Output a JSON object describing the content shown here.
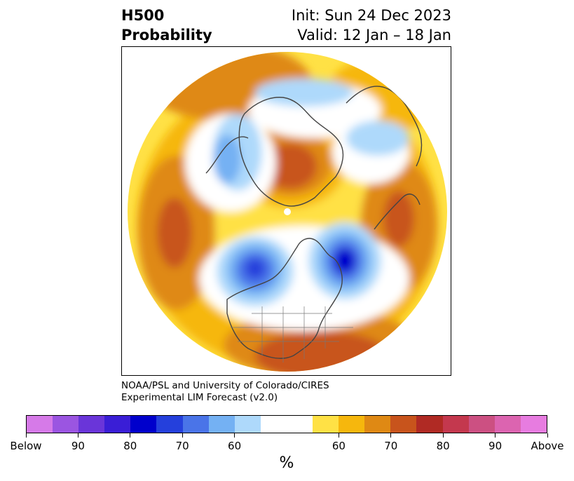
{
  "title": {
    "left_line1": "H500",
    "left_line2": "Probability",
    "right_line1": "Init: Sun 24 Dec 2023",
    "right_line2": "Valid: 12 Jan – 18 Jan"
  },
  "credit": {
    "line1": "NOAA/PSL and University of Colorado/CIRES",
    "line2": "Experimental LIM Forecast (v2.0)"
  },
  "colorbar": {
    "colors": [
      "#d67ae8",
      "#9b55e1",
      "#6a35d9",
      "#3a1ed6",
      "#0000cc",
      "#2540dc",
      "#4a74e8",
      "#74b1f3",
      "#aed9fb",
      "#ffffff",
      "#ffffff",
      "#ffe145",
      "#f6b70d",
      "#df8914",
      "#c8541c",
      "#b02a24",
      "#c4384e",
      "#cc5082",
      "#dc64b0",
      "#e77ce0"
    ],
    "labels": [
      "Below",
      "90",
      "80",
      "70",
      "60",
      "60",
      "70",
      "80",
      "90",
      "Above"
    ],
    "unit": "%"
  },
  "map": {
    "description_icon": "north-polar-stereographic-map",
    "features": [
      {
        "name": "north-america-below-center",
        "sign": "below",
        "peak_pct": 80
      },
      {
        "name": "north-atlantic-below-center",
        "sign": "below",
        "peak_pct": 85
      },
      {
        "name": "scandinavia-europe-below",
        "sign": "below",
        "peak_pct": 60
      },
      {
        "name": "siberia-below",
        "sign": "below",
        "peak_pct": 60
      },
      {
        "name": "arctic-above-center",
        "sign": "above",
        "peak_pct": 75
      },
      {
        "name": "north-pacific-above",
        "sign": "above",
        "peak_pct": 70
      },
      {
        "name": "eastern-asia-above",
        "sign": "above",
        "peak_pct": 70
      },
      {
        "name": "southeast-us-above",
        "sign": "above",
        "peak_pct": 70
      }
    ]
  }
}
